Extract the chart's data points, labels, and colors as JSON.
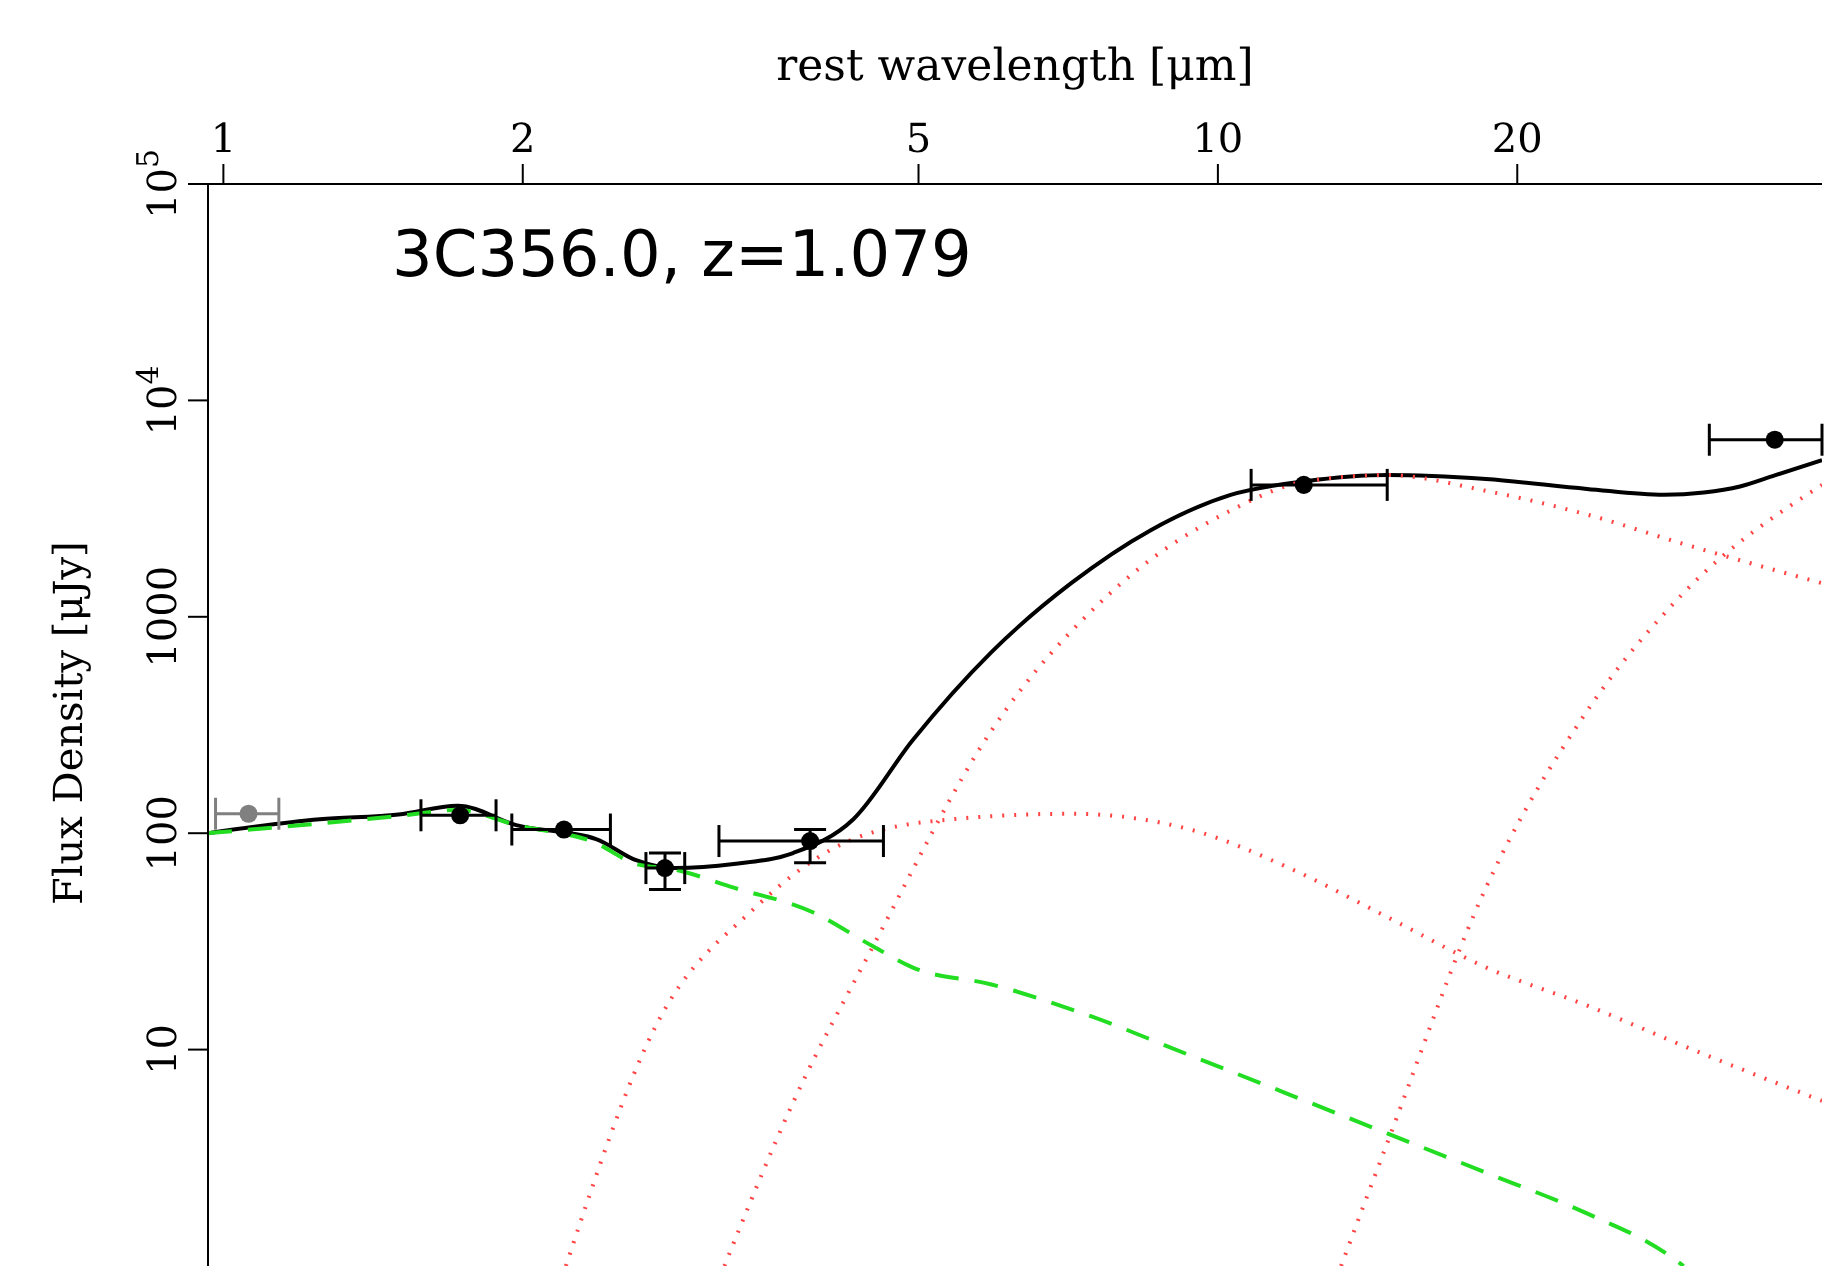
{
  "chart_data": {
    "type": "line",
    "title": "3C356.0, z=1.079",
    "xlabel": "rest wavelength [μm]",
    "ylabel": "Flux Density [μJy]",
    "log": "xy",
    "xlim": [
      0.965,
      40.5
    ],
    "xticks": [
      1,
      2,
      5,
      10,
      20
    ],
    "ylim": [
      1,
      100000
    ],
    "yticks": [
      10,
      100,
      1000,
      {
        "value": 10000,
        "label": "10$^{4}$"
      },
      {
        "value": 100000,
        "label": "10$^{5}$"
      }
    ],
    "grid": false,
    "series": [
      {
        "color": "#000000",
        "line_style": "solid",
        "marker": "none",
        "x": [
          0.965,
          1.25,
          1.5,
          1.72,
          1.97,
          2.37,
          2.6,
          2.84,
          3.26,
          3.74,
          4.3,
          4.93,
          5.92,
          7.12,
          8.56,
          10.3,
          12.3,
          14.8,
          18.6,
          23.5,
          28.1,
          30.8,
          33.5,
          36.3,
          40.5
        ],
        "values": [
          100,
          116,
          122,
          134,
          109,
          94,
          75,
          69,
          72,
          81,
          116,
          268,
          687,
          1430,
          2514,
          3660,
          4240,
          4520,
          4330,
          3900,
          3660,
          3750,
          4000,
          4500,
          5300
        ]
      },
      {
        "color": "#22dd22",
        "line_style": "dashed",
        "marker": "none",
        "x": [
          0.965,
          1.5,
          1.72,
          1.97,
          2.37,
          2.6,
          2.84,
          3.26,
          3.92,
          4.5,
          4.93,
          5.92,
          7.44,
          9.38,
          11.8,
          14.8,
          18.6,
          23.5,
          28.1,
          29.4
        ],
        "values": [
          100,
          120,
          128,
          109,
          90,
          72,
          68,
          56,
          43,
          30,
          24,
          20,
          14.3,
          9.4,
          6.2,
          4.1,
          2.7,
          1.75,
          1.16,
          1
        ]
      },
      {
        "type": "line",
        "color": "#ff4444",
        "line_style": "dotted",
        "marker": "none",
        "x": [
          2.21,
          2.72,
          3.42,
          4.3,
          5.4,
          7.12,
          9.38,
          11.8,
          14.8,
          18.6,
          23.5,
          29.4,
          40.5
        ],
        "values": [
          1,
          12.8,
          45,
          94,
          116,
          123,
          104,
          69,
          41,
          24,
          16,
          10.4,
          5.8
        ]
      },
      {
        "type": "line",
        "color": "#ff4444",
        "line_style": "dotted",
        "marker": "none",
        "x": [
          3.19,
          3.74,
          4.5,
          5.92,
          7.8,
          10.3,
          12.3,
          14.8,
          18.6,
          23.5,
          29.4,
          40.5
        ],
        "values": [
          1,
          5.7,
          30,
          298,
          1290,
          3100,
          4240,
          4520,
          3820,
          2970,
          2170,
          1430
        ]
      },
      {
        "type": "line",
        "color": "#ff4444",
        "line_style": "dotted",
        "marker": "none",
        "x": [
          13.3,
          14.8,
          18.6,
          23.5,
          29.4,
          40.5
        ],
        "values": [
          1,
          3.7,
          56,
          366,
          1290,
          4070
        ]
      },
      {
        "type": "scatter",
        "color": "#000000",
        "marker": "circle",
        "x": [
          1.73,
          2.2,
          2.78,
          3.89,
          12.2,
          36.3
        ],
        "values": [
          121,
          104,
          69,
          92,
          4070,
          6580
        ],
        "xerrors": [
          [
            1.58,
            1.88
          ],
          [
            1.95,
            2.45
          ],
          [
            2.66,
            2.91
          ],
          [
            3.15,
            4.61
          ],
          [
            10.8,
            14.8
          ],
          [
            31.2,
            40.5
          ]
        ],
        "errors": [
          null,
          null,
          [
            55,
            81
          ],
          [
            73,
            104
          ],
          null,
          null
        ]
      },
      {
        "type": "scatter",
        "color": "#808080",
        "marker": "circle",
        "x": [
          1.06
        ],
        "values": [
          123
        ],
        "xerrors": [
          [
            0.982,
            1.137
          ]
        ]
      }
    ]
  }
}
